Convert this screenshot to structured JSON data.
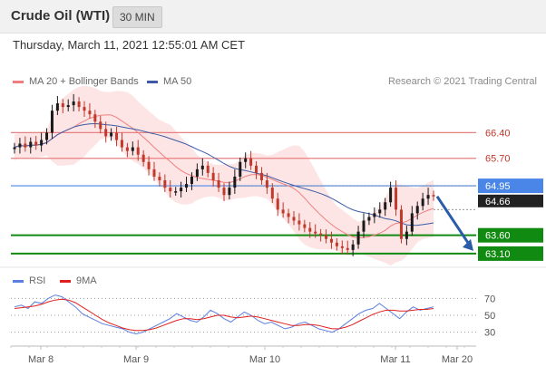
{
  "header": {
    "title": "Crude Oil (WTI)",
    "timeframe": "30 MIN"
  },
  "timestamp": "Thursday, March 11, 2021 12:55:01 AM CET",
  "legend": {
    "ma20": "MA 20 + Bollinger Bands",
    "ma50": "MA 50",
    "credit": "Research © 2021 Trading Central"
  },
  "rsi_legend": {
    "rsi": "RSI",
    "ma9": "9MA"
  },
  "colors": {
    "ma20": "#f08080",
    "ma50": "#3b5ba5",
    "bollinger_fill": "#fde0e0",
    "resistance": "#e88080",
    "pivot": "#4a86e8",
    "support": "#108a10",
    "candle_up": "#1a1a1a",
    "candle_down": "#c0392b",
    "arrow": "#2a5ca8",
    "rsi": "#5b7fe0",
    "rsi_ma": "#e02020"
  },
  "chart_data": [
    {
      "type": "candlestick",
      "title": "",
      "x_ticks": [
        "Mar 8",
        "Mar 9",
        "Mar 10",
        "Mar 11",
        "Mar 20"
      ],
      "ylim": [
        62.9,
        67.3
      ],
      "levels": [
        {
          "value": 66.4,
          "label": "66.40",
          "kind": "resistance"
        },
        {
          "value": 65.7,
          "label": "65.70",
          "kind": "resistance"
        },
        {
          "value": 64.95,
          "label": "64.95",
          "kind": "pivot"
        },
        {
          "value": 63.6,
          "label": "63.60",
          "kind": "support"
        },
        {
          "value": 63.1,
          "label": "63.10",
          "kind": "support"
        }
      ],
      "last_price": {
        "value": 64.66,
        "label": "64.66"
      },
      "price_path": [
        66.0,
        66.1,
        66.0,
        66.15,
        66.05,
        66.2,
        66.4,
        67.0,
        67.2,
        67.1,
        67.15,
        67.25,
        67.1,
        67.0,
        66.9,
        66.7,
        66.5,
        66.3,
        66.4,
        66.2,
        66.0,
        65.9,
        66.0,
        65.8,
        65.6,
        65.4,
        65.2,
        65.1,
        64.9,
        64.8,
        64.8,
        64.9,
        65.0,
        65.2,
        65.4,
        65.5,
        65.3,
        65.1,
        64.9,
        64.7,
        64.9,
        65.2,
        65.6,
        65.7,
        65.5,
        65.3,
        65.1,
        64.9,
        64.6,
        64.3,
        64.2,
        64.1,
        64.0,
        63.9,
        63.8,
        63.7,
        63.65,
        63.6,
        63.5,
        63.4,
        63.3,
        63.25,
        63.2,
        63.35,
        63.7,
        64.0,
        64.1,
        64.2,
        64.3,
        64.5,
        64.9,
        64.3,
        63.5,
        63.7,
        64.2,
        64.4,
        64.6,
        64.7,
        64.66
      ],
      "projection": {
        "from": 64.66,
        "to": 63.1
      }
    },
    {
      "type": "line",
      "title": "",
      "ylim": [
        20,
        80
      ],
      "y_ticks": [
        70,
        50,
        30
      ],
      "series": [
        {
          "name": "RSI",
          "values": [
            60,
            62,
            58,
            66,
            64,
            70,
            74,
            72,
            66,
            60,
            52,
            48,
            44,
            40,
            38,
            36,
            34,
            30,
            28,
            30,
            34,
            38,
            42,
            46,
            52,
            48,
            44,
            42,
            48,
            56,
            52,
            46,
            42,
            48,
            54,
            50,
            44,
            40,
            42,
            38,
            34,
            36,
            40,
            42,
            38,
            34,
            32,
            30,
            34,
            40,
            46,
            52,
            56,
            58,
            64,
            58,
            52,
            46,
            54,
            60,
            56,
            58,
            60
          ]
        },
        {
          "name": "9MA",
          "values": [
            58,
            59,
            60,
            61,
            63,
            66,
            68,
            69,
            68,
            65,
            60,
            55,
            50,
            45,
            41,
            38,
            35,
            33,
            32,
            32,
            33,
            35,
            38,
            41,
            44,
            46,
            46,
            45,
            46,
            48,
            50,
            50,
            48,
            47,
            48,
            49,
            48,
            46,
            44,
            42,
            40,
            38,
            38,
            39,
            39,
            38,
            36,
            34,
            34,
            36,
            39,
            43,
            47,
            51,
            54,
            56,
            56,
            55,
            55,
            56,
            57,
            57,
            58
          ]
        }
      ]
    }
  ]
}
